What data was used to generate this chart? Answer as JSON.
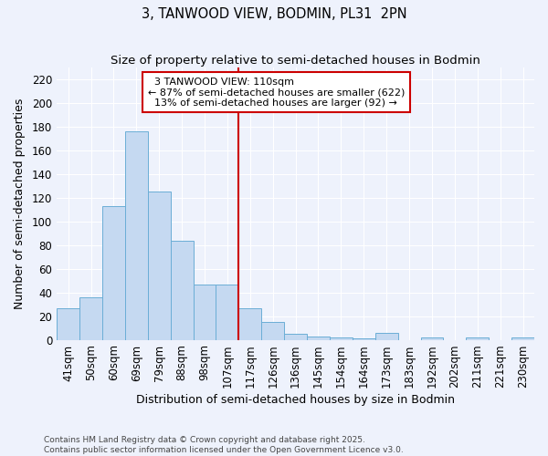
{
  "title": "3, TANWOOD VIEW, BODMIN, PL31  2PN",
  "subtitle": "Size of property relative to semi-detached houses in Bodmin",
  "xlabel": "Distribution of semi-detached houses by size in Bodmin",
  "ylabel": "Number of semi-detached properties",
  "categories": [
    "41sqm",
    "50sqm",
    "60sqm",
    "69sqm",
    "79sqm",
    "88sqm",
    "98sqm",
    "107sqm",
    "117sqm",
    "126sqm",
    "136sqm",
    "145sqm",
    "154sqm",
    "164sqm",
    "173sqm",
    "183sqm",
    "192sqm",
    "202sqm",
    "211sqm",
    "221sqm",
    "230sqm"
  ],
  "values": [
    27,
    36,
    113,
    176,
    125,
    84,
    47,
    47,
    27,
    15,
    5,
    3,
    2,
    1,
    6,
    0,
    2,
    0,
    2,
    0,
    2
  ],
  "bar_color": "#c5d9f1",
  "bar_edge_color": "#6baed6",
  "property_line_label": "3 TANWOOD VIEW: 110sqm",
  "annotation_smaller": "← 87% of semi-detached houses are smaller (622)",
  "annotation_larger": "13% of semi-detached houses are larger (92) →",
  "annotation_box_color": "#ffffff",
  "annotation_box_edge_color": "#cc0000",
  "ylim": [
    0,
    230
  ],
  "yticks": [
    0,
    20,
    40,
    60,
    80,
    100,
    120,
    140,
    160,
    180,
    200,
    220
  ],
  "background_color": "#eef2fc",
  "grid_color": "#ffffff",
  "title_fontsize": 10.5,
  "subtitle_fontsize": 9.5,
  "label_fontsize": 9,
  "tick_fontsize": 8.5,
  "annot_fontsize": 8,
  "footer_fontsize": 6.5,
  "footer": "Contains HM Land Registry data © Crown copyright and database right 2025.\nContains public sector information licensed under the Open Government Licence v3.0."
}
